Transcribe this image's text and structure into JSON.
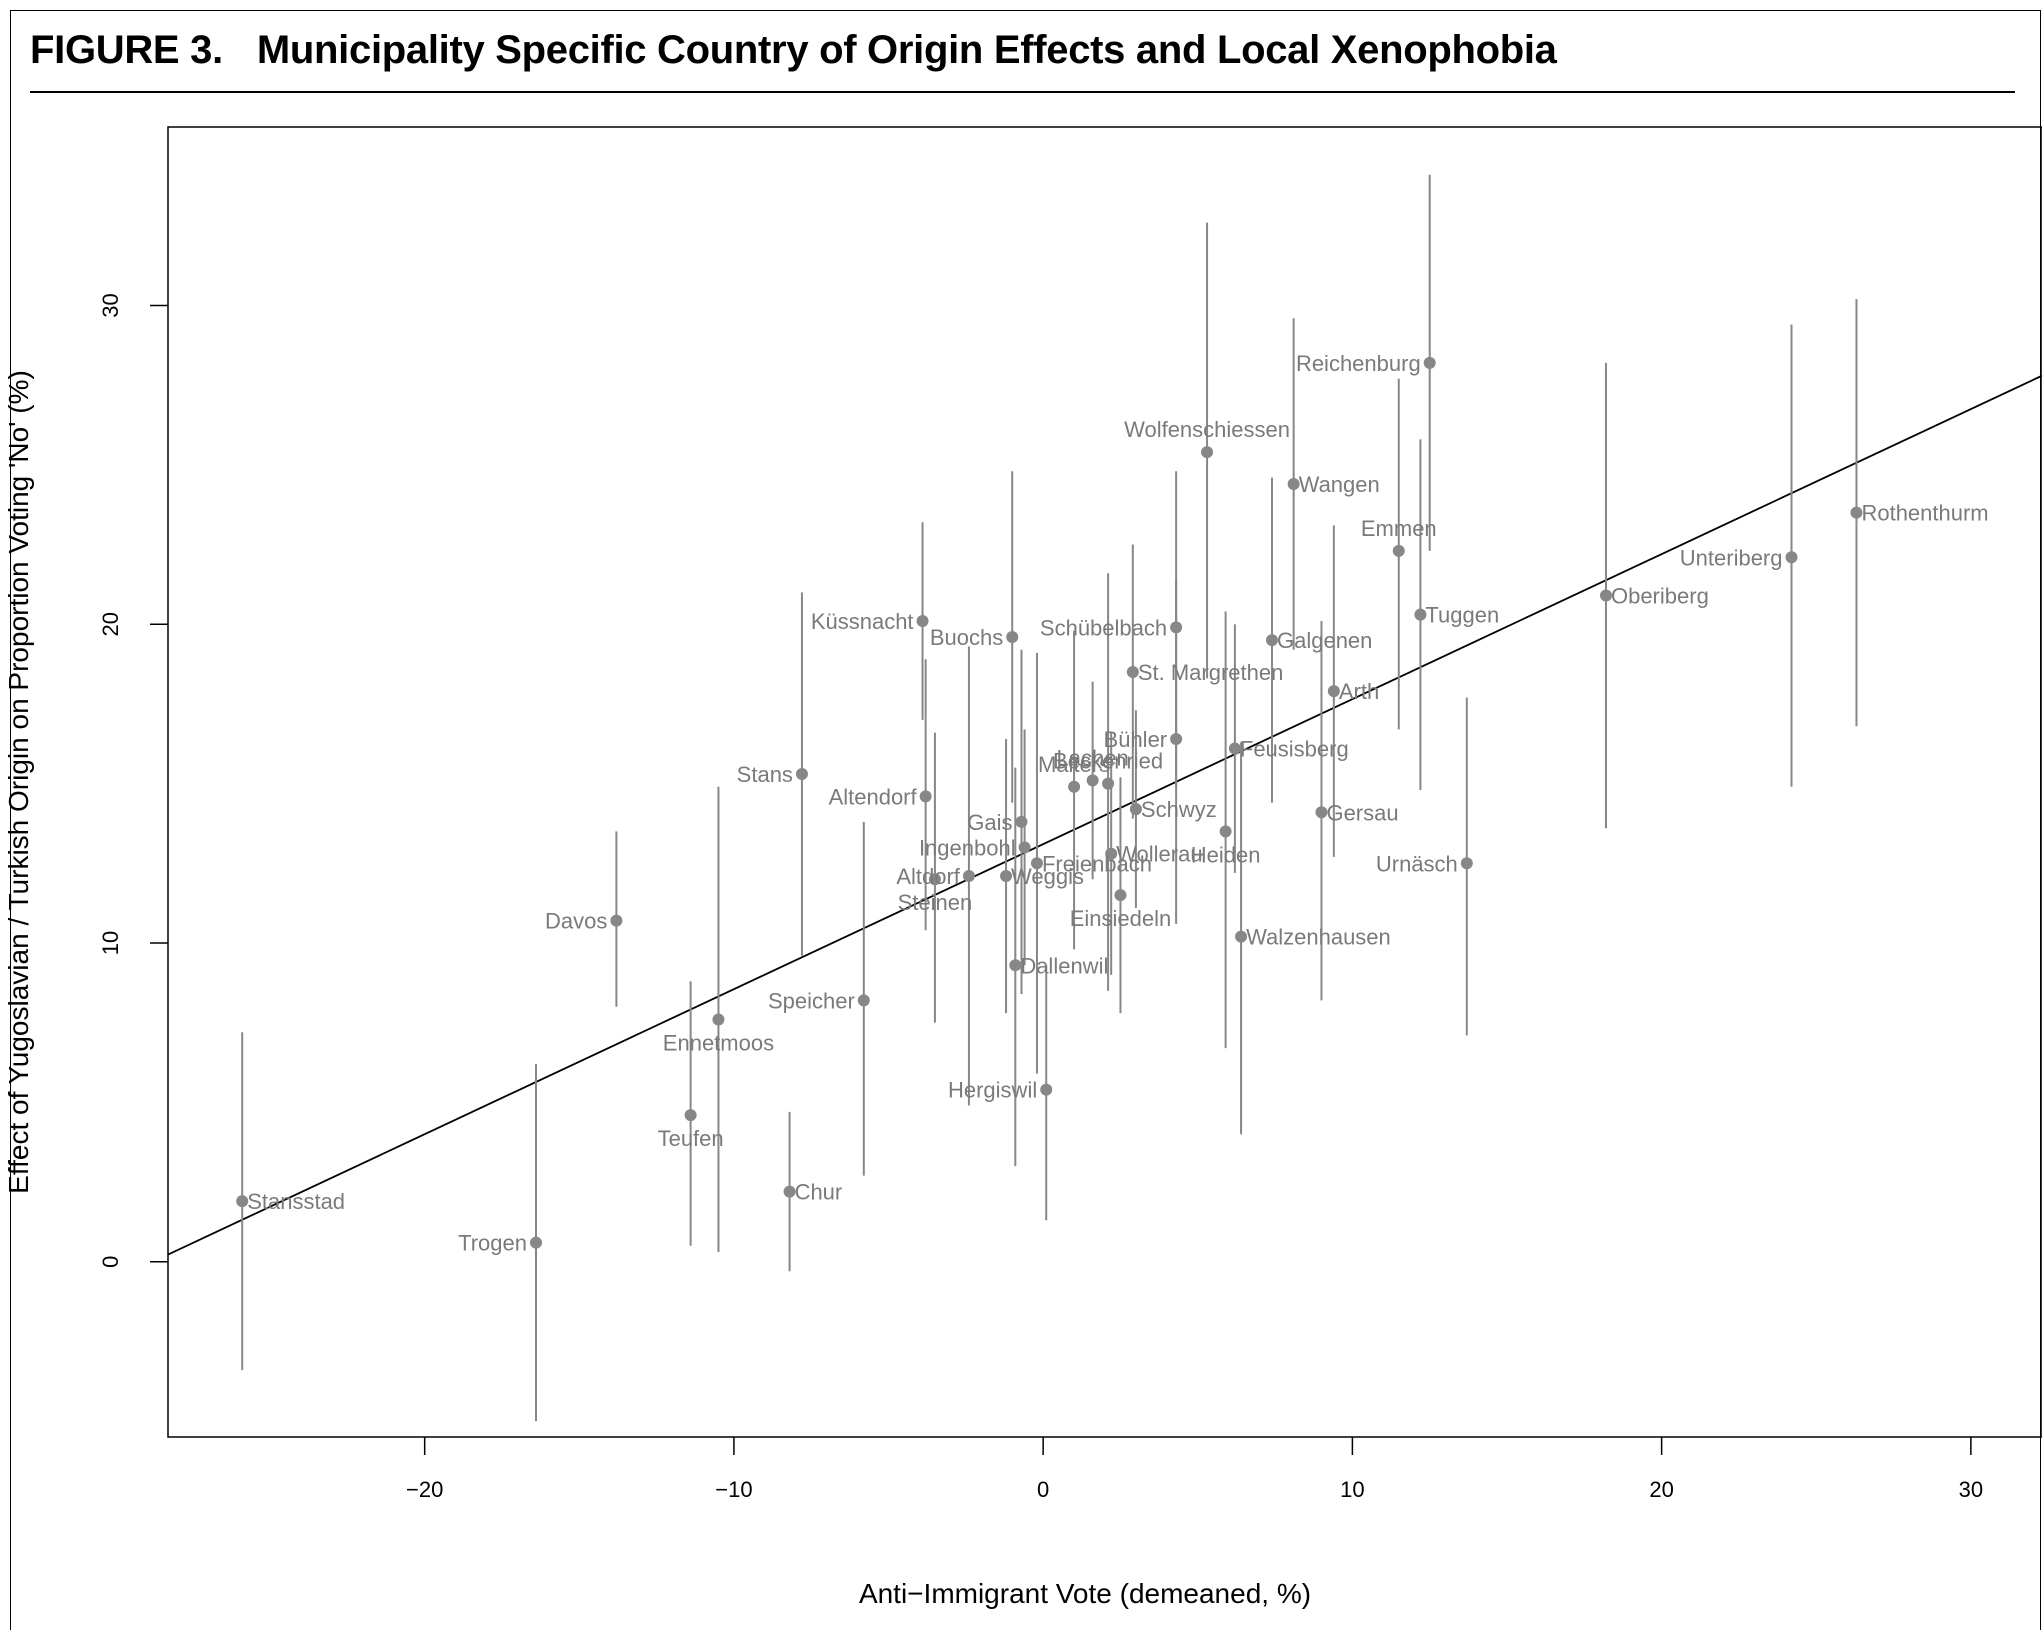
{
  "figure": {
    "label": "FIGURE 3.",
    "title": "Municipality Specific Country of Origin Effects and Local Xenophobia"
  },
  "chart_data": {
    "type": "scatter",
    "xlabel": "Anti−Immigrant Vote (demeaned, %)",
    "ylabel": "Effect of Yugoslavian / Turkish Origin on Proportion Voting 'No' (%)",
    "xlim": [
      -28.3,
      32.3
    ],
    "ylim": [
      -5.5,
      35.6
    ],
    "xticks": [
      -20,
      -10,
      0,
      10,
      20,
      30
    ],
    "xtick_labels": [
      "−20",
      "−10",
      "0",
      "10",
      "20",
      "30"
    ],
    "yticks": [
      0,
      10,
      20,
      30
    ],
    "ytick_labels": [
      "0",
      "10",
      "20",
      "30"
    ],
    "grid": false,
    "colors": {
      "points": "#878787",
      "fit_line": "#000000"
    },
    "fit_line": {
      "intercept": 13.1,
      "slope": 0.455
    },
    "points": [
      {
        "name": "Stansstad",
        "x": -25.9,
        "y": 1.9,
        "lo": -3.4,
        "hi": 7.2,
        "lpos": 4
      },
      {
        "name": "Trogen",
        "x": -16.4,
        "y": 0.6,
        "lo": -5.0,
        "hi": 6.2,
        "lpos": 2
      },
      {
        "name": "Davos",
        "x": -13.8,
        "y": 10.7,
        "lo": 8.0,
        "hi": 13.5,
        "lpos": 2
      },
      {
        "name": "Teufen",
        "x": -11.4,
        "y": 4.6,
        "lo": 0.5,
        "hi": 8.8,
        "lpos": 1
      },
      {
        "name": "Ennetmoos",
        "x": -10.5,
        "y": 7.6,
        "lo": 0.3,
        "hi": 14.9,
        "lpos": 1
      },
      {
        "name": "Chur",
        "x": -8.2,
        "y": 2.2,
        "lo": -0.3,
        "hi": 4.7,
        "lpos": 4
      },
      {
        "name": "Stans",
        "x": -7.8,
        "y": 15.3,
        "lo": 9.6,
        "hi": 21.0,
        "lpos": 2
      },
      {
        "name": "Speicher",
        "x": -5.8,
        "y": 8.2,
        "lo": 2.7,
        "hi": 13.8,
        "lpos": 2
      },
      {
        "name": "Küssnacht",
        "x": -3.9,
        "y": 20.1,
        "lo": 17.0,
        "hi": 23.2,
        "lpos": 2
      },
      {
        "name": "Altendorf",
        "x": -3.8,
        "y": 14.6,
        "lo": 10.4,
        "hi": 18.9,
        "lpos": 2
      },
      {
        "name": "Steinen",
        "x": -3.5,
        "y": 12.0,
        "lo": 7.5,
        "hi": 16.6,
        "lpos": 1
      },
      {
        "name": "Altdorf",
        "x": -2.4,
        "y": 12.1,
        "lo": 4.9,
        "hi": 19.3,
        "lpos": 2
      },
      {
        "name": "Weggis",
        "x": -1.2,
        "y": 12.1,
        "lo": 7.8,
        "hi": 16.4,
        "lpos": 4
      },
      {
        "name": "Buochs",
        "x": -1.0,
        "y": 19.6,
        "lo": 14.4,
        "hi": 24.8,
        "lpos": 2
      },
      {
        "name": "Dallenwil",
        "x": -0.9,
        "y": 9.3,
        "lo": 3.0,
        "hi": 15.5,
        "lpos": 4
      },
      {
        "name": "Gais",
        "x": -0.7,
        "y": 13.8,
        "lo": 8.4,
        "hi": 19.2,
        "lpos": 2
      },
      {
        "name": "Ingenbohl",
        "x": -0.6,
        "y": 13.0,
        "lo": 9.3,
        "hi": 16.7,
        "lpos": 2
      },
      {
        "name": "Freienbach",
        "x": -0.2,
        "y": 12.5,
        "lo": 5.9,
        "hi": 19.1,
        "lpos": 4
      },
      {
        "name": "Hergiswil",
        "x": 0.1,
        "y": 5.4,
        "lo": 1.3,
        "hi": 9.3,
        "lpos": 2
      },
      {
        "name": "Malters",
        "x": 1.0,
        "y": 14.9,
        "lo": 9.8,
        "hi": 19.8,
        "lpos": 3
      },
      {
        "name": "Lachen",
        "x": 1.6,
        "y": 15.1,
        "lo": 12.0,
        "hi": 18.2,
        "lpos": 3
      },
      {
        "name": "Beckenried",
        "x": 2.1,
        "y": 15.0,
        "lo": 8.5,
        "hi": 21.6,
        "lpos": 3
      },
      {
        "name": "Wollerau",
        "x": 2.2,
        "y": 12.8,
        "lo": 9.0,
        "hi": 16.6,
        "lpos": 4
      },
      {
        "name": "Einsiedeln",
        "x": 2.5,
        "y": 11.5,
        "lo": 7.8,
        "hi": 15.2,
        "lpos": 1
      },
      {
        "name": "St. Margrethen",
        "x": 2.9,
        "y": 18.5,
        "lo": 13.9,
        "hi": 22.5,
        "lpos": 4
      },
      {
        "name": "Schwyz",
        "x": 3.0,
        "y": 14.2,
        "lo": 11.1,
        "hi": 17.3,
        "lpos": 4
      },
      {
        "name": "Schübelbach",
        "x": 4.3,
        "y": 19.9,
        "lo": 14.9,
        "hi": 24.8,
        "lpos": 2
      },
      {
        "name": "Bühler",
        "x": 4.3,
        "y": 16.4,
        "lo": 10.6,
        "hi": 21.4,
        "lpos": 2
      },
      {
        "name": "Wolfenschiessen",
        "x": 5.3,
        "y": 25.4,
        "lo": 18.3,
        "hi": 32.6,
        "lpos": 3
      },
      {
        "name": "Heiden",
        "x": 5.9,
        "y": 13.5,
        "lo": 6.7,
        "hi": 20.4,
        "lpos": 1
      },
      {
        "name": "Feusisberg",
        "x": 6.2,
        "y": 16.1,
        "lo": 12.2,
        "hi": 20.0,
        "lpos": 4
      },
      {
        "name": "Walzenhausen",
        "x": 6.4,
        "y": 10.2,
        "lo": 4.0,
        "hi": 16.3,
        "lpos": 4
      },
      {
        "name": "Galgenen",
        "x": 7.4,
        "y": 19.5,
        "lo": 14.4,
        "hi": 24.6,
        "lpos": 4
      },
      {
        "name": "Wangen",
        "x": 8.1,
        "y": 24.4,
        "lo": 19.2,
        "hi": 29.6,
        "lpos": 4
      },
      {
        "name": "Gersau",
        "x": 9.0,
        "y": 14.1,
        "lo": 8.2,
        "hi": 20.1,
        "lpos": 4
      },
      {
        "name": "Arth",
        "x": 9.4,
        "y": 17.9,
        "lo": 12.7,
        "hi": 23.1,
        "lpos": 4
      },
      {
        "name": "Emmen",
        "x": 11.5,
        "y": 22.3,
        "lo": 16.7,
        "hi": 27.7,
        "lpos": 3
      },
      {
        "name": "Tuggen",
        "x": 12.2,
        "y": 20.3,
        "lo": 14.8,
        "hi": 25.8,
        "lpos": 4
      },
      {
        "name": "Reichenburg",
        "x": 12.5,
        "y": 28.2,
        "lo": 22.3,
        "hi": 34.1,
        "lpos": 2
      },
      {
        "name": "Urnäsch",
        "x": 13.7,
        "y": 12.5,
        "lo": 7.1,
        "hi": 17.7,
        "lpos": 2
      },
      {
        "name": "Oberiberg",
        "x": 18.2,
        "y": 20.9,
        "lo": 13.6,
        "hi": 28.2,
        "lpos": 4
      },
      {
        "name": "Unteriberg",
        "x": 24.2,
        "y": 22.1,
        "lo": 14.9,
        "hi": 29.4,
        "lpos": 2
      },
      {
        "name": "Rothenthurm",
        "x": 26.3,
        "y": 23.5,
        "lo": 16.8,
        "hi": 30.2,
        "lpos": 4
      }
    ]
  }
}
